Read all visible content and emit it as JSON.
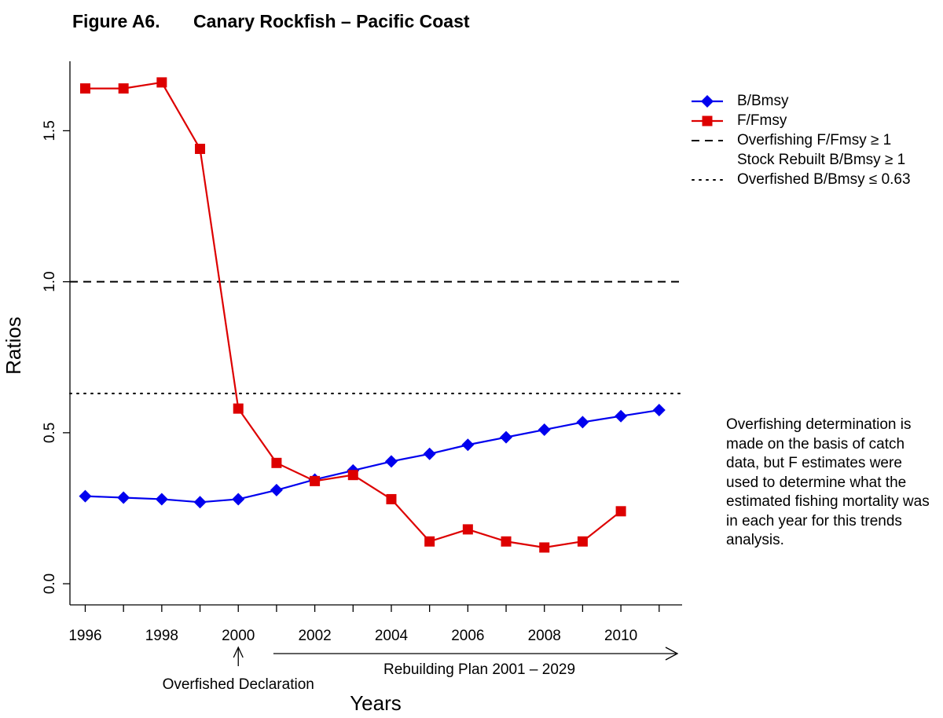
{
  "figure": {
    "label": "Figure A6.",
    "title": "Canary Rockfish – Pacific Coast"
  },
  "chart_data": {
    "type": "line",
    "xlabel": "Years",
    "ylabel": "Ratios",
    "xlim": [
      1995.6,
      2011.6
    ],
    "ylim": [
      -0.07,
      1.73
    ],
    "x_ticks": [
      1996,
      1998,
      2000,
      2002,
      2004,
      2006,
      2008,
      2010
    ],
    "y_ticks": [
      "0.0",
      "0.5",
      "1.0",
      "1.5"
    ],
    "y_tick_values": [
      0.0,
      0.5,
      1.0,
      1.5
    ],
    "series": [
      {
        "name": "B/Bmsy",
        "color": "#0000ee",
        "marker": "diamond",
        "x": [
          1996,
          1997,
          1998,
          1999,
          2000,
          2001,
          2002,
          2003,
          2004,
          2005,
          2006,
          2007,
          2008,
          2009,
          2010,
          2011
        ],
        "values": [
          0.29,
          0.285,
          0.28,
          0.27,
          0.28,
          0.31,
          0.345,
          0.375,
          0.405,
          0.43,
          0.46,
          0.485,
          0.51,
          0.535,
          0.555,
          0.575
        ]
      },
      {
        "name": "F/Fmsy",
        "color": "#dd0000",
        "marker": "square",
        "x": [
          1996,
          1997,
          1998,
          1999,
          2000,
          2001,
          2002,
          2003,
          2004,
          2005,
          2006,
          2007,
          2008,
          2009,
          2010
        ],
        "values": [
          1.64,
          1.64,
          1.66,
          1.44,
          0.58,
          0.4,
          0.34,
          0.36,
          0.28,
          0.14,
          0.18,
          0.14,
          0.12,
          0.14,
          0.24
        ]
      }
    ],
    "reference_lines": [
      {
        "value": 1.0,
        "style": "dashed"
      },
      {
        "value": 0.63,
        "style": "dotted"
      }
    ],
    "legend": {
      "position": "top-right",
      "entries": [
        {
          "label": "B/Bmsy",
          "style": "line-diamond",
          "color": "#0000ee"
        },
        {
          "label": "F/Fmsy",
          "style": "line-square",
          "color": "#dd0000"
        },
        {
          "label": "Overfishing F/Fmsy ≥ 1",
          "style": "dashed",
          "color": "#000000"
        },
        {
          "label": "Stock Rebuilt B/Bmsy ≥ 1",
          "style": "none",
          "color": "#000000"
        },
        {
          "label": "Overfished B/Bmsy ≤ 0.63",
          "style": "dotted",
          "color": "#000000"
        }
      ]
    },
    "annotations": {
      "declaration": {
        "label": "Overfished Declaration",
        "year": 2000
      },
      "rebuilding": {
        "label": "Rebuilding Plan 2001 – 2029",
        "from_year": 2001
      }
    }
  },
  "note": "Overfishing determination is made on the basis of catch data, but F estimates were used to determine what the estimated fishing mortality was in each year for this trends analysis."
}
